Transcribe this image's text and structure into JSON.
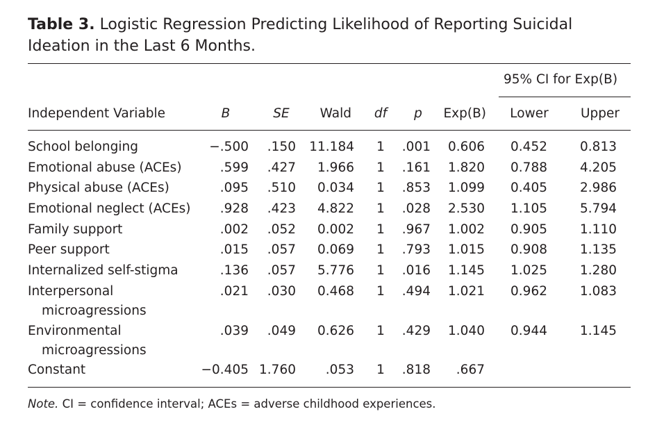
{
  "caption": {
    "label": "Table 3.",
    "title": "Logistic Regression Predicting Likelihood of Reporting Suicidal Ideation in the Last 6 Months."
  },
  "spanner": "95% CI for Exp(B)",
  "headers": {
    "var": "Independent Variable",
    "B": "B",
    "SE": "SE",
    "wald": "Wald",
    "df": "df",
    "p": "p",
    "expb": "Exp(B)",
    "lower": "Lower",
    "upper": "Upper"
  },
  "rows": [
    {
      "name": "School belonging",
      "name2": "",
      "B": "−.500",
      "SE": ".150",
      "wald": "11.184",
      "df": "1",
      "p": ".001",
      "expb": "0.606",
      "lower": "0.452",
      "upper": "0.813"
    },
    {
      "name": "Emotional abuse (ACEs)",
      "name2": "",
      "B": ".599",
      "SE": ".427",
      "wald": "1.966",
      "df": "1",
      "p": ".161",
      "expb": "1.820",
      "lower": "0.788",
      "upper": "4.205"
    },
    {
      "name": "Physical abuse (ACEs)",
      "name2": "",
      "B": ".095",
      "SE": ".510",
      "wald": "0.034",
      "df": "1",
      "p": ".853",
      "expb": "1.099",
      "lower": "0.405",
      "upper": "2.986"
    },
    {
      "name": "Emotional neglect (ACEs)",
      "name2": "",
      "B": ".928",
      "SE": ".423",
      "wald": "4.822",
      "df": "1",
      "p": ".028",
      "expb": "2.530",
      "lower": "1.105",
      "upper": "5.794"
    },
    {
      "name": "Family support",
      "name2": "",
      "B": ".002",
      "SE": ".052",
      "wald": "0.002",
      "df": "1",
      "p": ".967",
      "expb": "1.002",
      "lower": "0.905",
      "upper": "1.110"
    },
    {
      "name": "Peer support",
      "name2": "",
      "B": ".015",
      "SE": ".057",
      "wald": "0.069",
      "df": "1",
      "p": ".793",
      "expb": "1.015",
      "lower": "0.908",
      "upper": "1.135"
    },
    {
      "name": "Internalized self-stigma",
      "name2": "",
      "B": ".136",
      "SE": ".057",
      "wald": "5.776",
      "df": "1",
      "p": ".016",
      "expb": "1.145",
      "lower": "1.025",
      "upper": "1.280"
    },
    {
      "name": "Interpersonal",
      "name2": "microagressions",
      "B": ".021",
      "SE": ".030",
      "wald": "0.468",
      "df": "1",
      "p": ".494",
      "expb": "1.021",
      "lower": "0.962",
      "upper": "1.083"
    },
    {
      "name": "Environmental",
      "name2": "microagressions",
      "B": ".039",
      "SE": ".049",
      "wald": "0.626",
      "df": "1",
      "p": ".429",
      "expb": "1.040",
      "lower": "0.944",
      "upper": "1.145"
    },
    {
      "name": "Constant",
      "name2": "",
      "B": "−0.405",
      "SE": "1.760",
      "wald": ".053",
      "df": "1",
      "p": ".818",
      "expb": ".667",
      "lower": "",
      "upper": ""
    }
  ],
  "note": {
    "label": "Note.",
    "text": "CI = confidence interval; ACEs = adverse childhood experiences."
  }
}
